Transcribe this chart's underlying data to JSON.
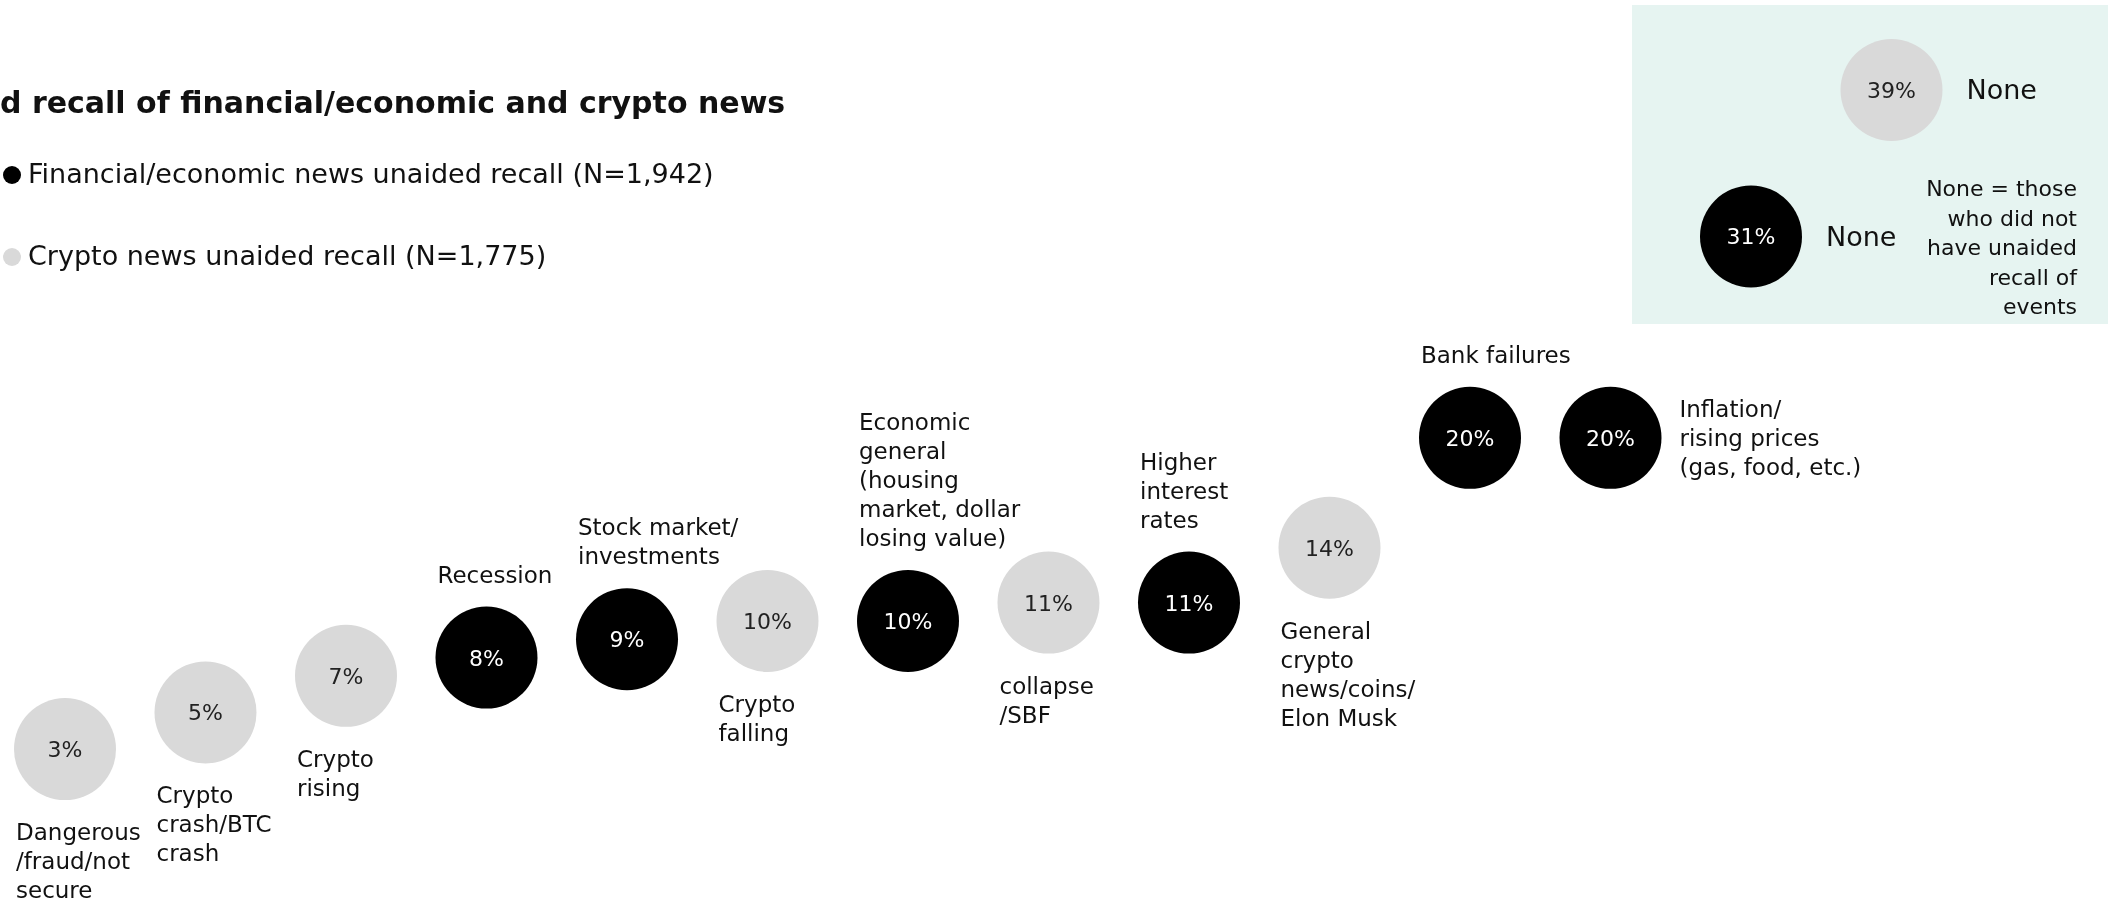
{
  "chart_data": {
    "type": "other",
    "title": "d recall of financial/economic and crypto news",
    "categories": [
      "Dangerous\n/fraud/not\nsecure",
      "Crypto\ncrash/BTC\ncrash",
      "Crypto\nrising",
      "Recession",
      "Stock market/\ninvestments",
      "Crypto\nfalling",
      "Economic\ngeneral\n(housing\nmarket, dollar\nlosing value)",
      "collapse\n/SBF",
      "Higher\ninterest\nrates",
      "General\ncrypto\nnews/coins/\nElon Musk",
      "Bank failures",
      "Inflation/\nrising prices\n(gas, food, etc.)",
      "None",
      "None"
    ],
    "series": [
      {
        "name": "Financial/economic news unaided recall (N=1,942)",
        "color": "#000000",
        "values": [
          null,
          null,
          null,
          8,
          9,
          null,
          10,
          null,
          11,
          null,
          20,
          20,
          31,
          null
        ],
        "value_labels": [
          null,
          null,
          null,
          "8%",
          "9%",
          null,
          "10%",
          null,
          "11%",
          null,
          "20%",
          "20%",
          "31%",
          null
        ]
      },
      {
        "name": "Crypto news unaided recall (N=1,775)",
        "color": "#d9d9d9",
        "values": [
          3,
          5,
          7,
          null,
          null,
          10,
          null,
          11,
          null,
          14,
          null,
          null,
          null,
          39
        ],
        "value_labels": [
          "3%",
          "5%",
          "7%",
          null,
          null,
          "10%",
          null,
          "11%",
          null,
          "14%",
          null,
          null,
          null,
          "39%"
        ]
      }
    ],
    "legend": "top left",
    "annotations": [
      "None = those\nwho did not\nhave unaided\nrecall of\nevents"
    ]
  }
}
